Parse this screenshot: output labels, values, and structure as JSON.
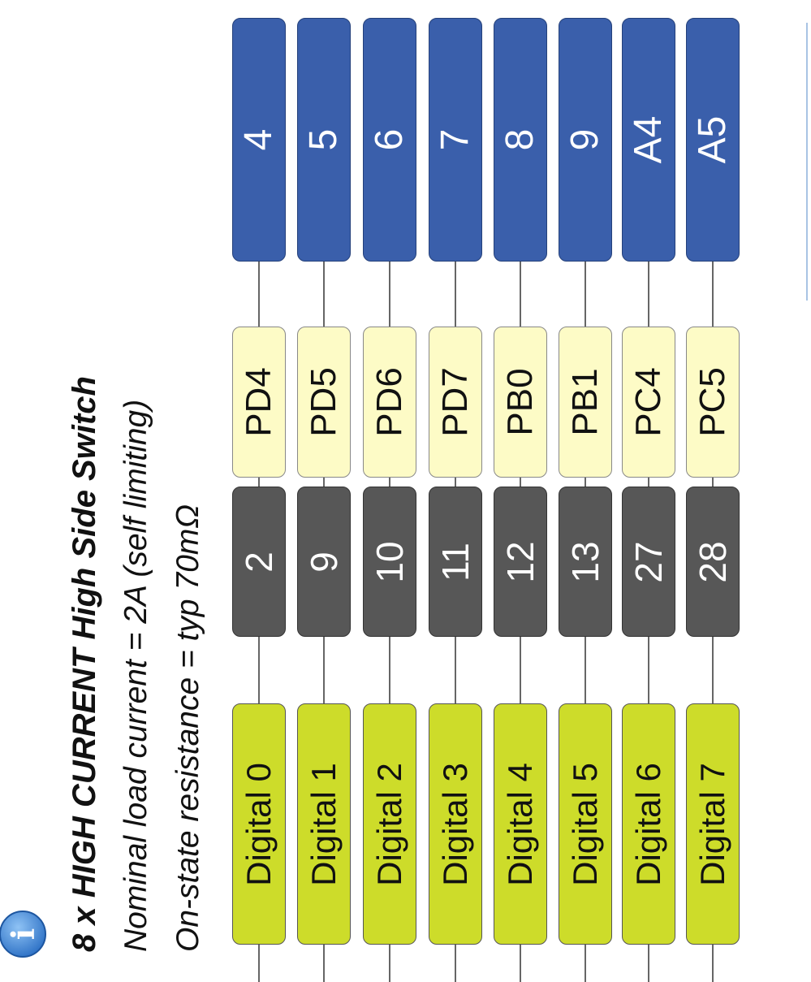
{
  "header": {
    "title": "8 x HIGH CURRENT High Side Switch",
    "line1": "Nominal load current = 2A (self limiting)",
    "line2": "On-state resistance = typ 70mΩ"
  },
  "info_icon": {
    "name": "info-icon",
    "color": "#3a86d6"
  },
  "colors": {
    "digital": "#cddc2a",
    "pin": "#575757",
    "port": "#fdfbc6",
    "arduino": "#3a5fab"
  },
  "channels": [
    {
      "digital": "Digital 0",
      "pin": "2",
      "port": "PD4",
      "arduino": "4"
    },
    {
      "digital": "Digital 1",
      "pin": "9",
      "port": "PD5",
      "arduino": "5"
    },
    {
      "digital": "Digital 2",
      "pin": "10",
      "port": "PD6",
      "arduino": "6"
    },
    {
      "digital": "Digital 3",
      "pin": "11",
      "port": "PD7",
      "arduino": "7"
    },
    {
      "digital": "Digital 4",
      "pin": "12",
      "port": "PB0",
      "arduino": "8"
    },
    {
      "digital": "Digital 5",
      "pin": "13",
      "port": "PB1",
      "arduino": "9"
    },
    {
      "digital": "Digital 6",
      "pin": "27",
      "port": "PC4",
      "arduino": "A4"
    },
    {
      "digital": "Digital 7",
      "pin": "28",
      "port": "PC5",
      "arduino": "A5"
    }
  ]
}
